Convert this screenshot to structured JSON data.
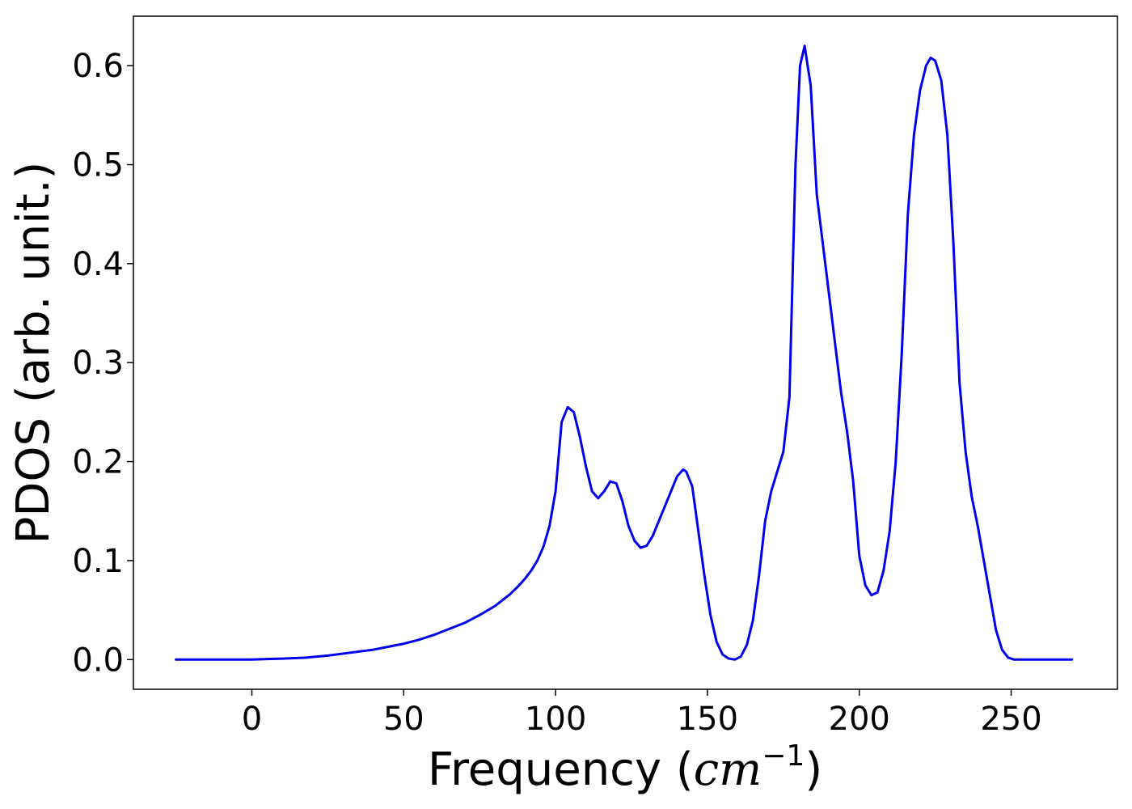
{
  "chart_data": {
    "type": "line",
    "title": "",
    "xlabel_main": "Frequency (",
    "xlabel_unit_base": "cm",
    "xlabel_unit_exp": "−1",
    "xlabel_close": ")",
    "ylabel": "PDOS (arb. unit.)",
    "xlim": [
      -39,
      285
    ],
    "ylim": [
      -0.03,
      0.65
    ],
    "xticks": [
      0,
      50,
      100,
      150,
      200,
      250
    ],
    "xtick_labels": [
      "0",
      "50",
      "100",
      "150",
      "200",
      "250"
    ],
    "yticks": [
      0.0,
      0.1,
      0.2,
      0.3,
      0.4,
      0.5,
      0.6
    ],
    "ytick_labels": [
      "0.0",
      "0.1",
      "0.2",
      "0.3",
      "0.4",
      "0.5",
      "0.6"
    ],
    "grid": false,
    "line_color": "#0000ee",
    "series": [
      {
        "x": [
          -25,
          0,
          5,
          10,
          18,
          25,
          30,
          35,
          40,
          45,
          50,
          55,
          60,
          65,
          70,
          75,
          80,
          85,
          88,
          90,
          92,
          94,
          96,
          98,
          100,
          102,
          104,
          106,
          108,
          110,
          112,
          114,
          116,
          118,
          120,
          122,
          124,
          126,
          128,
          130,
          132,
          134,
          136,
          138,
          140,
          142,
          143,
          145,
          147,
          149,
          151,
          153,
          155,
          157,
          159,
          161,
          163,
          165,
          167,
          169,
          171,
          173,
          175,
          177,
          179,
          180.5,
          182,
          184,
          186,
          188,
          190,
          192,
          194,
          196,
          198,
          200,
          202,
          204,
          206,
          208,
          210,
          212,
          214,
          216,
          218,
          220,
          222,
          223.5,
          225,
          227,
          229,
          231,
          233,
          235,
          237,
          239,
          241,
          243,
          245,
          247,
          249,
          251,
          255,
          260,
          265,
          270
        ],
        "y": [
          0,
          0,
          0.0005,
          0.001,
          0.002,
          0.004,
          0.006,
          0.008,
          0.01,
          0.013,
          0.016,
          0.02,
          0.025,
          0.031,
          0.037,
          0.045,
          0.054,
          0.066,
          0.075,
          0.082,
          0.09,
          0.1,
          0.114,
          0.135,
          0.17,
          0.24,
          0.255,
          0.25,
          0.225,
          0.195,
          0.17,
          0.163,
          0.17,
          0.18,
          0.178,
          0.16,
          0.135,
          0.12,
          0.113,
          0.115,
          0.125,
          0.14,
          0.155,
          0.17,
          0.185,
          0.192,
          0.19,
          0.175,
          0.13,
          0.085,
          0.045,
          0.018,
          0.005,
          0.001,
          0,
          0.003,
          0.015,
          0.04,
          0.085,
          0.14,
          0.17,
          0.19,
          0.21,
          0.265,
          0.5,
          0.6,
          0.62,
          0.58,
          0.47,
          0.42,
          0.37,
          0.32,
          0.27,
          0.23,
          0.18,
          0.105,
          0.075,
          0.065,
          0.068,
          0.09,
          0.13,
          0.2,
          0.31,
          0.45,
          0.53,
          0.575,
          0.6,
          0.608,
          0.605,
          0.585,
          0.53,
          0.42,
          0.28,
          0.21,
          0.165,
          0.135,
          0.1,
          0.065,
          0.03,
          0.01,
          0.002,
          0,
          0,
          0,
          0,
          0
        ]
      }
    ]
  }
}
